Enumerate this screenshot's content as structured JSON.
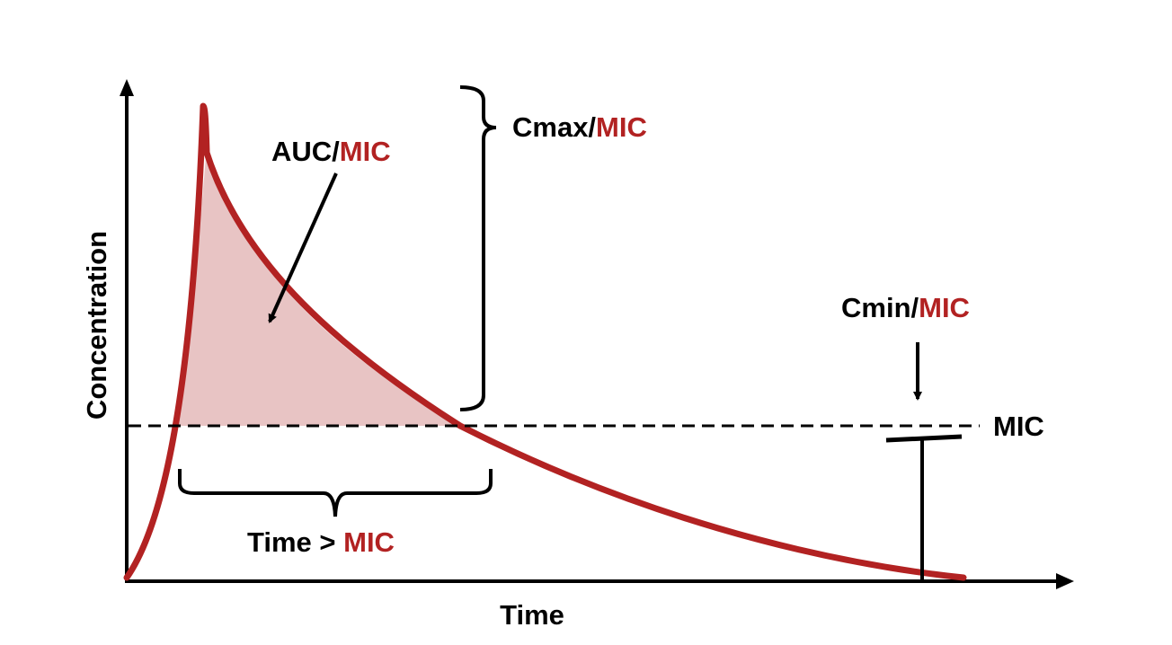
{
  "labels": {
    "auc": "AUC/",
    "cmax": "Cmax/",
    "cmin": "Cmin/",
    "time_over": "Time > ",
    "mic": "MIC",
    "mic_line": "MIC",
    "x_axis": "Time",
    "y_axis": "Concentration"
  },
  "colors": {
    "curve": "#b22222",
    "fill": "#e8c4c4",
    "text": "#000000",
    "accent_text": "#b22222"
  }
}
